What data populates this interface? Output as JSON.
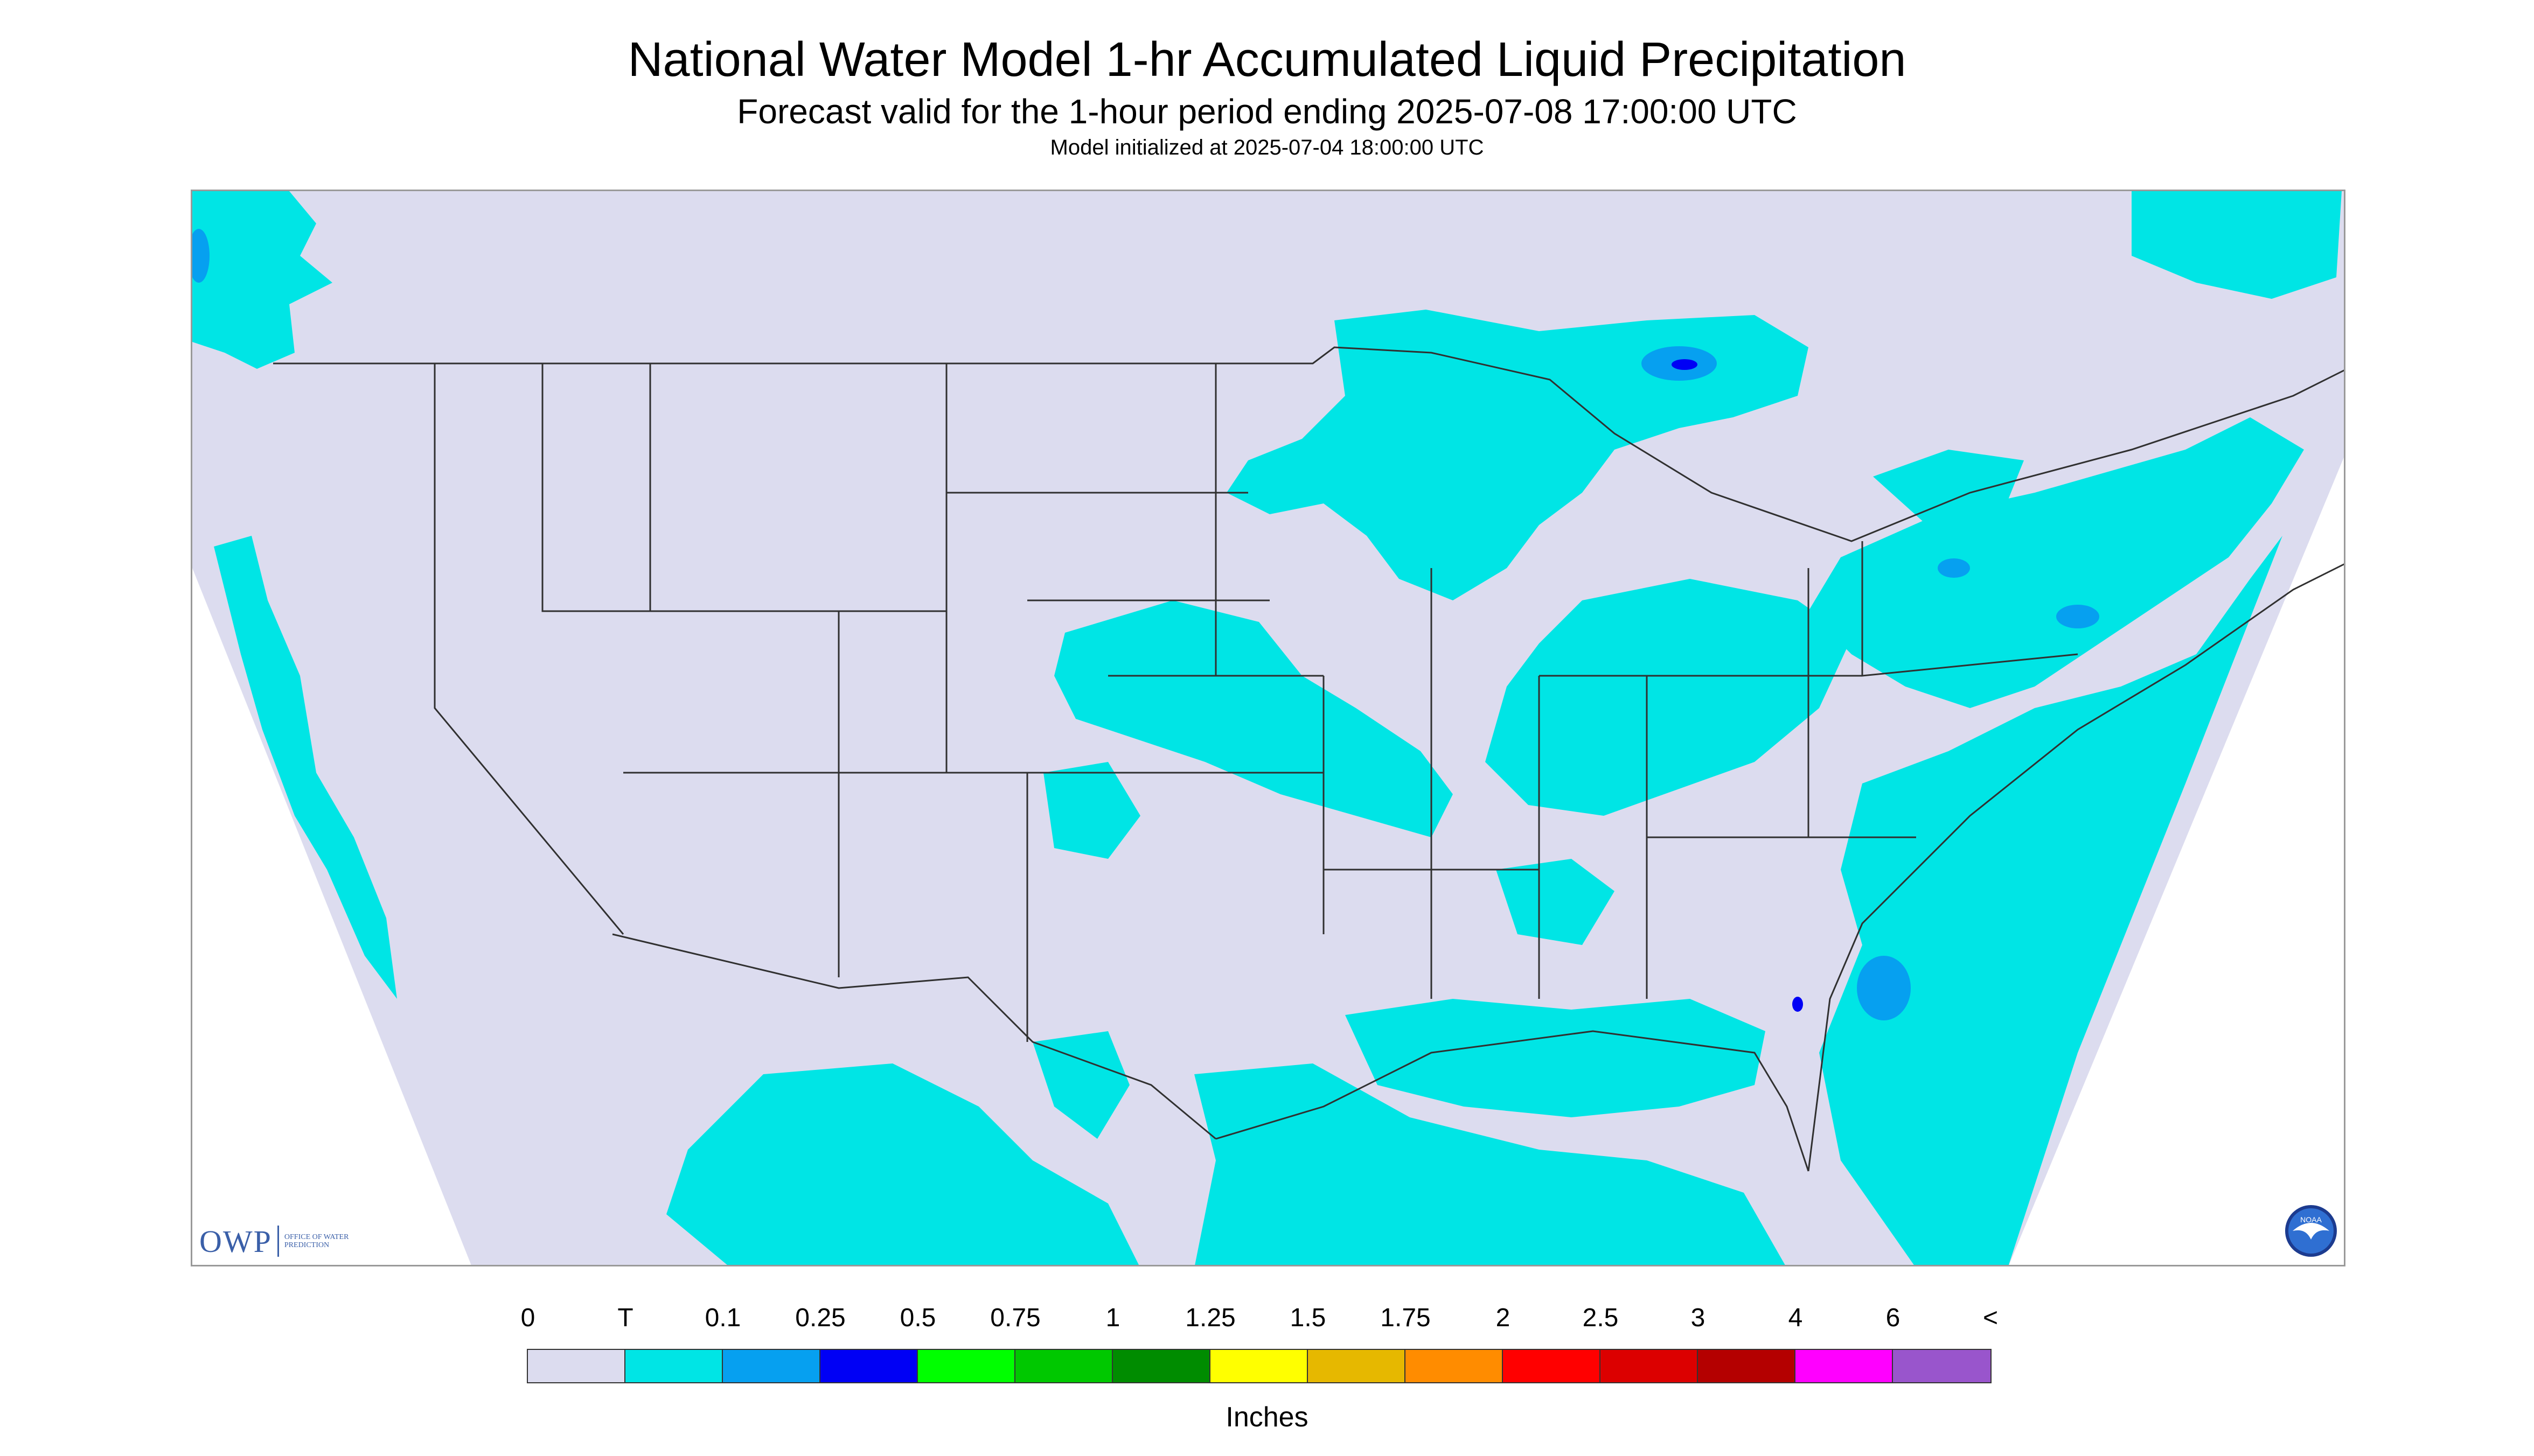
{
  "header": {
    "title": "National Water Model 1-hr Accumulated Liquid Precipitation",
    "subtitle": "Forecast valid for the 1-hour period ending 2025-07-08 17:00:00 UTC",
    "init": "Model initialized at 2025-07-04 18:00:00 UTC"
  },
  "legend": {
    "tick_labels": [
      "0",
      "T",
      "0.1",
      "0.25",
      "0.5",
      "0.75",
      "1",
      "1.25",
      "1.5",
      "1.75",
      "2",
      "2.5",
      "3",
      "4",
      "6",
      "<"
    ],
    "colors": [
      "#dcdcef",
      "#00e5e5",
      "#06a0f0",
      "#0000f5",
      "#00ff00",
      "#00c800",
      "#008c00",
      "#ffff00",
      "#e6b800",
      "#ff8c00",
      "#ff0000",
      "#dc0000",
      "#b40000",
      "#ff00ff",
      "#9955cc"
    ],
    "units": "Inches"
  },
  "logos": {
    "owp": "OWP",
    "owp_sub": "OFFICE OF WATER PREDICTION",
    "noaa": "NOAA"
  },
  "map": {
    "background_color": "#dcdcef",
    "precip_color": "#00e5e5",
    "moderate_color": "#06a0f0",
    "heavy_color": "#0000f5",
    "border_color": "#303030"
  }
}
